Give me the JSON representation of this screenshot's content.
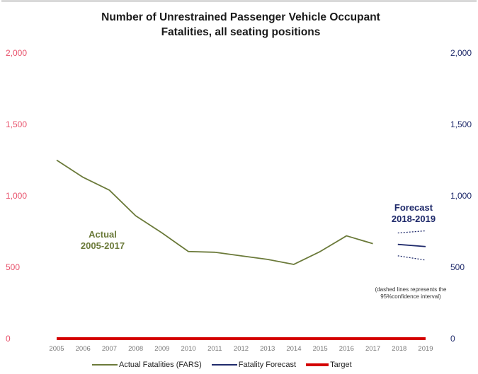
{
  "title_line1": "Number of Unrestrained Passenger Vehicle Occupant",
  "title_line2": "Fatalities, all seating positions",
  "colors": {
    "actual": "#6b7a3a",
    "forecast": "#1f2a6b",
    "target": "#d40000",
    "left_axis": "#e8506a",
    "right_axis": "#1f2a6b",
    "annot_actual": "#6b7a3a",
    "annot_forecast": "#1f2a6b"
  },
  "annotations": {
    "actual_line1": "Actual",
    "actual_line2": "2005-2017",
    "forecast_line1": "Forecast",
    "forecast_line2": "2018-2019",
    "ci_note_line1": "(dashed lines represents the",
    "ci_note_line2": "95%confidence interval)"
  },
  "chart_data": {
    "type": "line",
    "title": "Number of Unrestrained Passenger Vehicle Occupant Fatalities, all seating positions",
    "x": [
      2005,
      2006,
      2007,
      2008,
      2009,
      2010,
      2011,
      2012,
      2013,
      2014,
      2015,
      2016,
      2017,
      2018,
      2019
    ],
    "x_tick_labels": [
      "2005",
      "2006",
      "2007",
      "2008",
      "2009",
      "2010",
      "2011",
      "2012",
      "2013",
      "2014",
      "2015",
      "2016",
      "2017",
      "2018",
      "2019"
    ],
    "ylim": [
      0,
      2000
    ],
    "left_ticks": [
      "0",
      "500",
      "1,000",
      "1,500",
      "2,000"
    ],
    "right_ticks": [
      "0",
      "500",
      "1,000",
      "1,500",
      "2,000"
    ],
    "tick_values": [
      0,
      500,
      1000,
      1500,
      2000
    ],
    "series": [
      {
        "name": "Actual Fatalities (FARS)",
        "x": [
          2005,
          2006,
          2007,
          2008,
          2009,
          2010,
          2011,
          2012,
          2013,
          2014,
          2015,
          2016,
          2017
        ],
        "values": [
          1250,
          1130,
          1040,
          860,
          740,
          610,
          605,
          580,
          555,
          520,
          610,
          720,
          665
        ]
      },
      {
        "name": "Fatality Forecast",
        "x": [
          2018,
          2019
        ],
        "values": [
          660,
          645
        ]
      },
      {
        "name": "Target",
        "x": [
          2005,
          2019
        ],
        "values": [
          0,
          0
        ]
      }
    ],
    "confidence_interval": {
      "x": [
        2018,
        2019
      ],
      "upper": [
        740,
        755
      ],
      "lower": [
        580,
        550
      ]
    },
    "grid": false,
    "legend_position": "bottom"
  }
}
